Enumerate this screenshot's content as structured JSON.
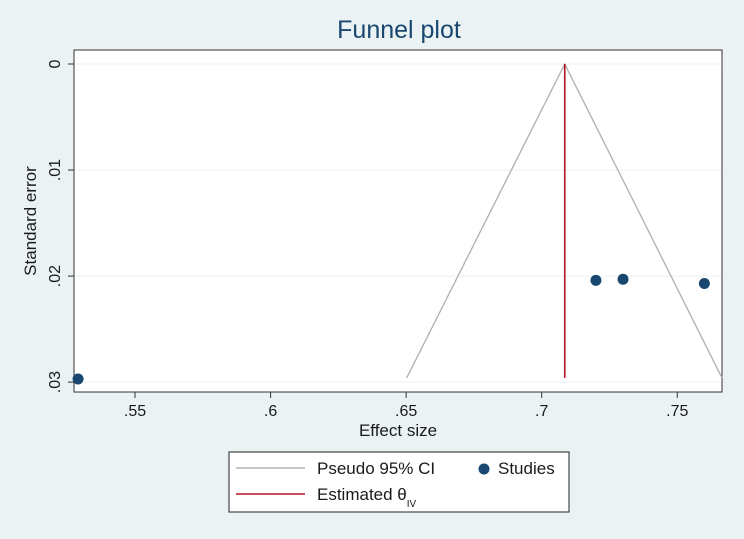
{
  "chart_data": {
    "type": "scatter",
    "title": "Funnel plot",
    "xlabel": "Effect size",
    "ylabel": "Standard error",
    "xlim": [
      0.5275,
      0.7665
    ],
    "ylim": [
      0,
      0.0298
    ],
    "y_reversed": true,
    "x_ticks": [
      0.55,
      0.6,
      0.65,
      0.7,
      0.75
    ],
    "x_tick_labels": [
      ".55",
      ".6",
      ".65",
      ".7",
      ".75"
    ],
    "y_ticks": [
      0,
      0.01,
      0.02,
      0.03
    ],
    "y_tick_labels": [
      "0",
      ".01",
      ".02",
      ".03"
    ],
    "grid": true,
    "series": [
      {
        "name": "Studies",
        "type": "scatter",
        "color": "#1a476f",
        "points": [
          {
            "x": 0.529,
            "y": 0.0297
          },
          {
            "x": 0.72,
            "y": 0.0204
          },
          {
            "x": 0.73,
            "y": 0.0203
          },
          {
            "x": 0.76,
            "y": 0.0207
          }
        ]
      },
      {
        "name": "Pseudo 95% CI",
        "type": "line",
        "color": "#b4b4b4",
        "points": [
          {
            "x": 0.6502,
            "y": 0.0296
          },
          {
            "x": 0.7085,
            "y": 0.0
          },
          {
            "x": 0.7665,
            "y": 0.0296
          }
        ]
      },
      {
        "name": "Estimated θIV",
        "type": "vline",
        "color": "#b5122a",
        "x": 0.7085,
        "y_range": [
          0,
          0.0296
        ]
      }
    ],
    "legend": {
      "placement": "bottom",
      "entries": [
        {
          "label": "Pseudo 95% CI",
          "marker": "line",
          "color": "#b4b4b4"
        },
        {
          "label": "Studies",
          "marker": "dot",
          "color": "#1a476f"
        },
        {
          "label": "Estimated θ",
          "subscript": "IV",
          "marker": "line",
          "color": "#b5122a"
        }
      ]
    },
    "colors": {
      "background": "#eaf2f3",
      "plot_background": "#ffffff",
      "grid": "#eaf2f3",
      "title": "#1a476f"
    }
  }
}
